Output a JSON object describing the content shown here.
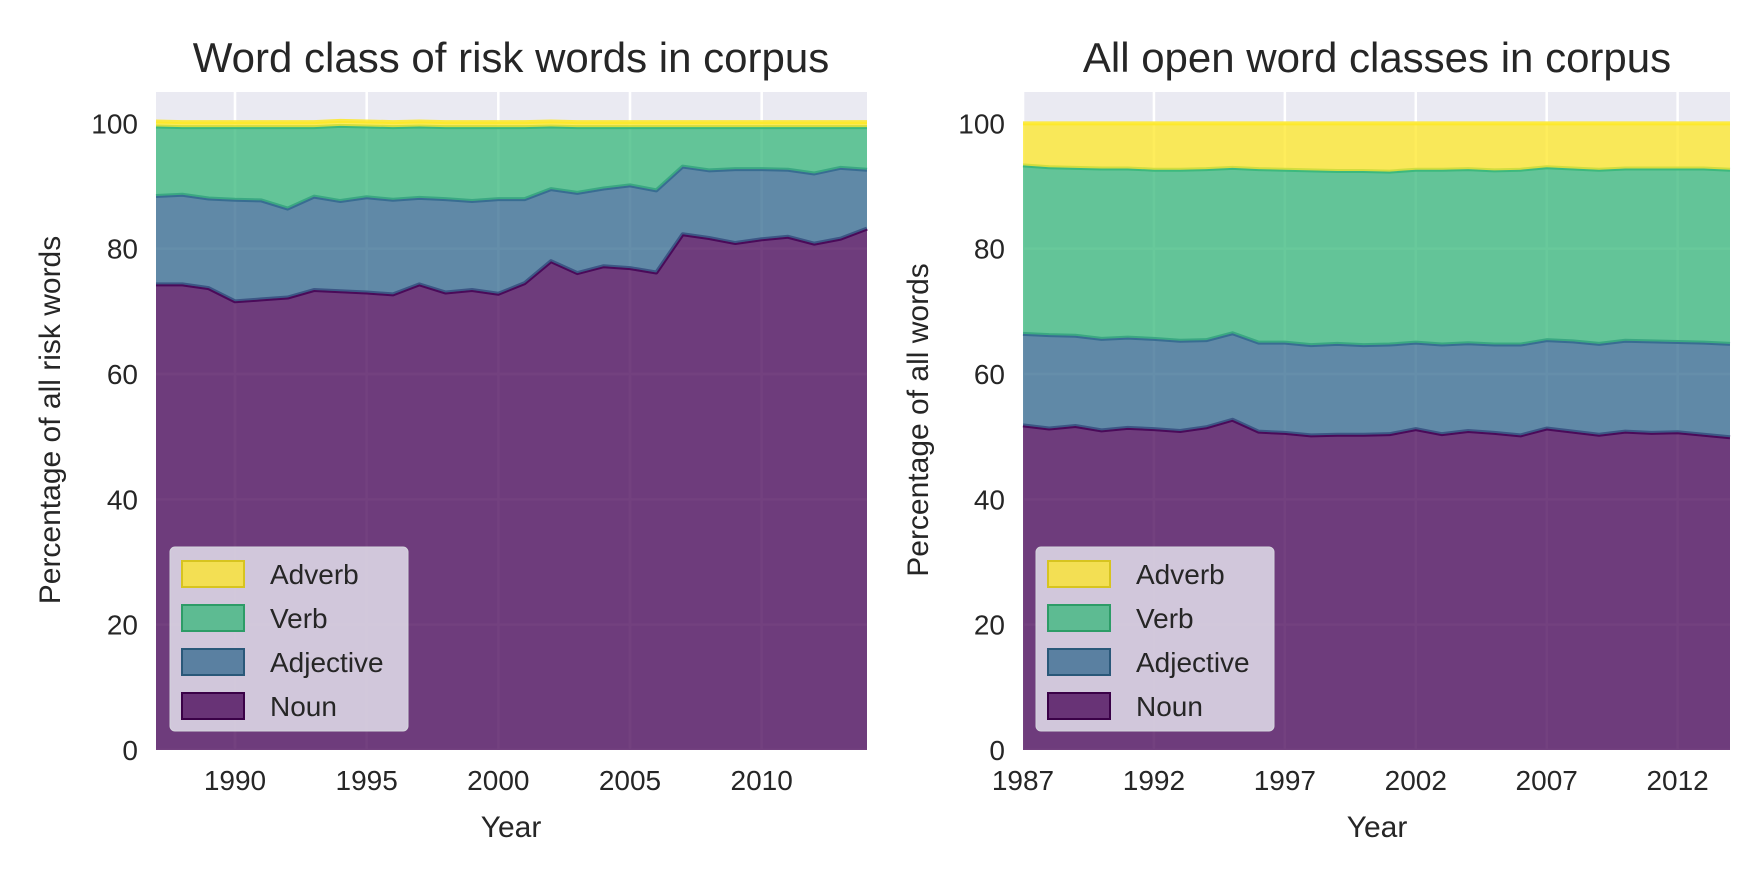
{
  "chart_data": [
    {
      "type": "area",
      "stacked": true,
      "title": "Word class of risk words in corpus",
      "xlabel": "Year",
      "ylabel": "Percentage of all risk words",
      "xlim": [
        1987,
        2014
      ],
      "ylim": [
        0,
        105
      ],
      "xticks": [
        1990,
        1995,
        2000,
        2005,
        2010
      ],
      "yticks": [
        0,
        20,
        40,
        60,
        80,
        100
      ],
      "grid": true,
      "legend_position": "lower-left",
      "legend_order": [
        "Adverb",
        "Verb",
        "Adjective",
        "Noun"
      ],
      "x": [
        1987,
        1988,
        1989,
        1990,
        1991,
        1992,
        1993,
        1994,
        1995,
        1996,
        1997,
        1998,
        1999,
        2000,
        2001,
        2002,
        2003,
        2004,
        2005,
        2006,
        2007,
        2008,
        2009,
        2010,
        2011,
        2012,
        2013,
        2014
      ],
      "series": [
        {
          "name": "Noun",
          "color": "#440154",
          "values": [
            74.3,
            74.3,
            73.7,
            71.6,
            71.9,
            72.2,
            73.4,
            73.2,
            73.0,
            72.7,
            74.3,
            73.0,
            73.4,
            72.8,
            74.5,
            78.0,
            76.1,
            77.2,
            76.9,
            76.2,
            82.3,
            81.7,
            80.9,
            81.5,
            81.9,
            80.8,
            81.6,
            83.2
          ]
        },
        {
          "name": "Adjective",
          "color": "#31688e",
          "values": [
            14.1,
            14.3,
            14.3,
            16.2,
            15.8,
            14.2,
            14.9,
            14.4,
            15.2,
            15.1,
            13.8,
            14.9,
            14.2,
            15.1,
            13.4,
            11.5,
            12.8,
            12.4,
            13.2,
            13.1,
            10.8,
            10.8,
            11.8,
            11.2,
            10.7,
            11.2,
            11.3,
            9.4
          ]
        },
        {
          "name": "Verb",
          "color": "#35b779",
          "values": [
            11.1,
            10.8,
            11.4,
            11.6,
            11.7,
            13.0,
            11.1,
            12.0,
            11.3,
            11.6,
            11.4,
            11.5,
            11.8,
            11.5,
            11.5,
            10.0,
            10.5,
            9.8,
            9.3,
            10.1,
            6.3,
            6.9,
            6.7,
            6.7,
            6.8,
            7.4,
            6.5,
            6.8
          ]
        },
        {
          "name": "Adverb",
          "color": "#fde725",
          "values": [
            0.8,
            0.8,
            0.8,
            0.8,
            0.8,
            0.8,
            0.8,
            0.8,
            0.8,
            0.8,
            0.8,
            0.8,
            0.8,
            0.8,
            0.8,
            0.8,
            0.8,
            0.8,
            0.8,
            0.8,
            0.8,
            0.8,
            0.8,
            0.8,
            0.8,
            0.8,
            0.8,
            0.8
          ]
        }
      ]
    },
    {
      "type": "area",
      "stacked": true,
      "title": "All open word classes in corpus",
      "xlabel": "Year",
      "ylabel": "Percentage of all words",
      "xlim": [
        1987,
        2014
      ],
      "ylim": [
        0,
        105
      ],
      "xticks": [
        1987,
        1992,
        1997,
        2002,
        2007,
        2012
      ],
      "yticks": [
        0,
        20,
        40,
        60,
        80,
        100
      ],
      "grid": true,
      "legend_position": "lower-left",
      "legend_order": [
        "Adverb",
        "Verb",
        "Adjective",
        "Noun"
      ],
      "x": [
        1987,
        1988,
        1989,
        1990,
        1991,
        1992,
        1993,
        1994,
        1995,
        1996,
        1997,
        1998,
        1999,
        2000,
        2001,
        2002,
        2003,
        2004,
        2005,
        2006,
        2007,
        2008,
        2009,
        2010,
        2011,
        2012,
        2013,
        2014
      ],
      "series": [
        {
          "name": "Noun",
          "color": "#440154",
          "values": [
            51.8,
            51.3,
            51.7,
            51.0,
            51.4,
            51.2,
            50.9,
            51.5,
            52.7,
            50.8,
            50.6,
            50.2,
            50.3,
            50.3,
            50.4,
            51.2,
            50.4,
            50.9,
            50.6,
            50.2,
            51.3,
            50.8,
            50.3,
            50.8,
            50.6,
            50.7,
            50.3,
            49.9
          ]
        },
        {
          "name": "Adjective",
          "color": "#31688e",
          "values": [
            14.6,
            14.9,
            14.4,
            14.6,
            14.4,
            14.4,
            14.4,
            13.9,
            13.8,
            14.2,
            14.4,
            14.4,
            14.5,
            14.3,
            14.3,
            13.8,
            14.3,
            14.0,
            14.1,
            14.5,
            14.1,
            14.4,
            14.5,
            14.5,
            14.6,
            14.4,
            14.7,
            14.9
          ]
        },
        {
          "name": "Verb",
          "color": "#35b779",
          "values": [
            26.9,
            26.8,
            26.8,
            27.2,
            27.0,
            27.0,
            27.3,
            27.3,
            26.4,
            27.7,
            27.6,
            27.9,
            27.6,
            27.8,
            27.6,
            27.6,
            27.9,
            27.8,
            27.8,
            27.9,
            27.6,
            27.6,
            27.8,
            27.5,
            27.6,
            27.7,
            27.8,
            27.8
          ]
        },
        {
          "name": "Adverb",
          "color": "#fde725",
          "values": [
            6.7,
            7.0,
            7.1,
            7.2,
            7.2,
            7.4,
            7.4,
            7.3,
            7.1,
            7.3,
            7.4,
            7.5,
            7.6,
            7.6,
            7.7,
            7.4,
            7.4,
            7.3,
            7.5,
            7.4,
            7.0,
            7.2,
            7.4,
            7.2,
            7.2,
            7.2,
            7.2,
            7.4
          ]
        }
      ]
    }
  ]
}
